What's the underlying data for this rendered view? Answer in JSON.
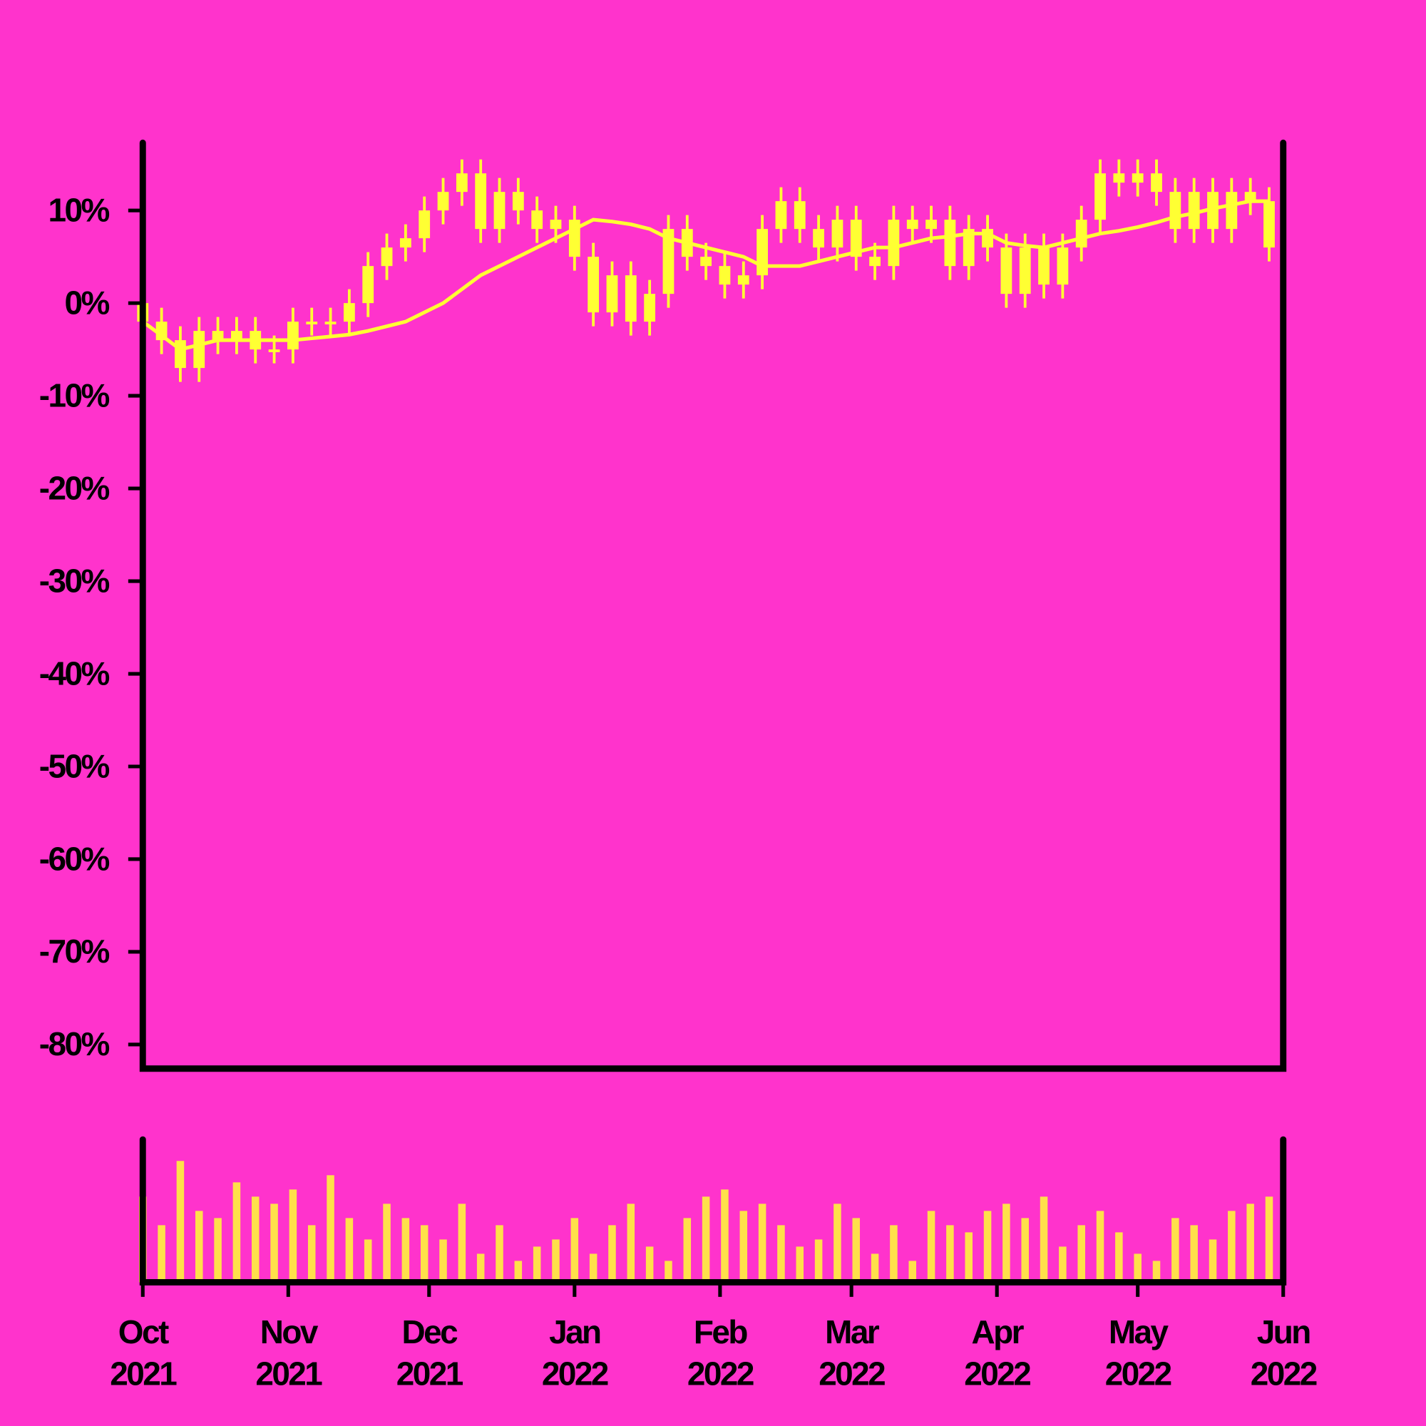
{
  "chart_data": {
    "type": "candlestick",
    "color": "#ffff33",
    "background": "#ff33cc",
    "x": [
      0,
      4,
      8,
      12,
      16,
      20,
      24,
      28,
      32,
      36,
      40,
      44,
      48,
      52,
      56,
      60,
      64,
      68,
      72,
      76,
      80,
      84,
      88,
      92,
      96,
      100,
      104,
      108,
      112,
      116,
      120,
      124,
      128,
      132,
      136,
      140,
      144,
      148,
      152,
      156,
      160,
      164,
      168,
      172,
      176,
      180,
      184,
      188,
      192,
      196,
      200,
      204,
      208,
      212,
      216,
      220,
      224,
      228,
      232,
      236,
      240
    ],
    "open": [
      0,
      -2,
      -4,
      -7,
      -3,
      -4,
      -3,
      -5,
      -5,
      -2,
      -2,
      -2,
      0,
      4,
      6,
      7,
      10,
      12,
      14,
      8,
      12,
      10,
      8,
      9,
      5,
      -1,
      3,
      -2,
      1,
      8,
      5,
      4,
      2,
      3,
      8,
      11,
      8,
      6,
      9,
      5,
      4,
      9,
      8,
      9,
      4,
      8,
      6,
      1,
      6,
      2,
      6,
      9,
      14,
      13,
      14,
      12,
      8,
      12,
      8,
      12,
      11
    ],
    "high": [
      1.5,
      -0.5,
      -2.5,
      -1.5,
      -1.5,
      -1.5,
      -1.5,
      -3.5,
      -0.5,
      -0.5,
      -0.5,
      1.5,
      5.5,
      7.5,
      8.5,
      11.5,
      13.5,
      15.5,
      15.5,
      13.5,
      13.5,
      11.5,
      10.5,
      10.5,
      6.5,
      4.5,
      4.5,
      2.5,
      9.5,
      9.5,
      6.5,
      5.5,
      4.5,
      9.5,
      12.5,
      12.5,
      9.5,
      10.5,
      10.5,
      6.5,
      10.5,
      10.5,
      10.5,
      10.5,
      9.5,
      9.5,
      7.5,
      7.5,
      7.5,
      7.5,
      10.5,
      15.5,
      15.5,
      15.5,
      15.5,
      13.5,
      13.5,
      13.5,
      13.5,
      13.5,
      12.5
    ],
    "low": [
      -3.5,
      -5.5,
      -8.5,
      -8.5,
      -5.5,
      -5.5,
      -6.5,
      -6.5,
      -6.5,
      -3.5,
      -3.5,
      -3.5,
      -1.5,
      2.5,
      4.5,
      5.5,
      8.5,
      10.5,
      6.5,
      6.5,
      8.5,
      6.5,
      6.5,
      3.5,
      -2.5,
      -2.5,
      -3.5,
      -3.5,
      -0.5,
      3.5,
      2.5,
      0.5,
      0.5,
      1.5,
      6.5,
      6.5,
      4.5,
      4.5,
      3.5,
      2.5,
      2.5,
      6.5,
      6.5,
      2.5,
      2.5,
      4.5,
      -0.5,
      -0.5,
      0.5,
      0.5,
      4.5,
      7.5,
      11.5,
      11.5,
      10.5,
      6.5,
      6.5,
      6.5,
      6.5,
      9.5,
      4.5
    ],
    "close": [
      -2,
      -4,
      -7,
      -3,
      -4,
      -3,
      -5,
      -5,
      -2,
      -2,
      -2,
      0,
      4,
      6,
      7,
      10,
      12,
      14,
      8,
      12,
      10,
      8,
      9,
      5,
      -1,
      3,
      -2,
      1,
      8,
      5,
      4,
      2,
      3,
      8,
      11,
      8,
      6,
      9,
      5,
      4,
      9,
      8,
      9,
      4,
      8,
      6,
      1,
      6,
      2,
      6,
      9,
      14,
      13,
      14,
      12,
      8,
      12,
      8,
      12,
      11,
      6
    ],
    "moving_average": [
      -2,
      -3.5,
      -5,
      -4.5,
      -4,
      -4,
      -4,
      -4,
      -4,
      -3.8,
      -3.6,
      -3.4,
      -3,
      -2.5,
      -2,
      -1,
      0,
      1.5,
      3,
      4,
      5,
      6,
      7,
      8,
      9,
      8.8,
      8.5,
      8,
      7,
      6.5,
      6,
      5.5,
      5,
      4,
      4,
      4,
      4.5,
      5,
      5.5,
      6,
      6,
      6.5,
      7,
      7.2,
      7.5,
      7.5,
      6.5,
      6.2,
      6,
      6.5,
      7,
      7.5,
      7.8,
      8.2,
      8.7,
      9.3,
      9.7,
      10.2,
      10.6,
      11,
      11
    ],
    "volume": [
      60,
      40,
      85,
      50,
      45,
      70,
      60,
      55,
      65,
      40,
      75,
      45,
      30,
      55,
      45,
      40,
      30,
      55,
      20,
      40,
      15,
      25,
      30,
      45,
      20,
      40,
      55,
      25,
      15,
      45,
      60,
      65,
      50,
      55,
      40,
      25,
      30,
      55,
      45,
      20,
      40,
      15,
      50,
      40,
      35,
      50,
      55,
      45,
      60,
      25,
      40,
      50,
      35,
      20,
      15,
      45,
      40,
      30,
      50,
      55,
      60
    ],
    "volume_ylim": [
      0,
      100
    ],
    "xlim": [
      0,
      243
    ],
    "xticks": [
      {
        "value": 0,
        "label": "Oct 2021"
      },
      {
        "value": 31,
        "label": "Nov 2021"
      },
      {
        "value": 61,
        "label": "Dec 2021"
      },
      {
        "value": 92,
        "label": "Jan 2022"
      },
      {
        "value": 123,
        "label": "Feb 2022"
      },
      {
        "value": 151,
        "label": "Mar 2022"
      },
      {
        "value": 182,
        "label": "Apr 2022"
      },
      {
        "value": 212,
        "label": "May 2022"
      },
      {
        "value": 243,
        "label": "Jun 2022"
      }
    ],
    "ylim": [
      -82.6,
      17.3
    ],
    "yticks": [
      {
        "value": -80,
        "label": "-80%"
      },
      {
        "value": -70,
        "label": "-70%"
      },
      {
        "value": -60,
        "label": "-60%"
      },
      {
        "value": -50,
        "label": "-50%"
      },
      {
        "value": -40,
        "label": "-40%"
      },
      {
        "value": -30,
        "label": "-30%"
      },
      {
        "value": -20,
        "label": "-20%"
      },
      {
        "value": -10,
        "label": "-10%"
      },
      {
        "value": 0,
        "label": "0%"
      },
      {
        "value": 10,
        "label": "10%"
      }
    ]
  }
}
